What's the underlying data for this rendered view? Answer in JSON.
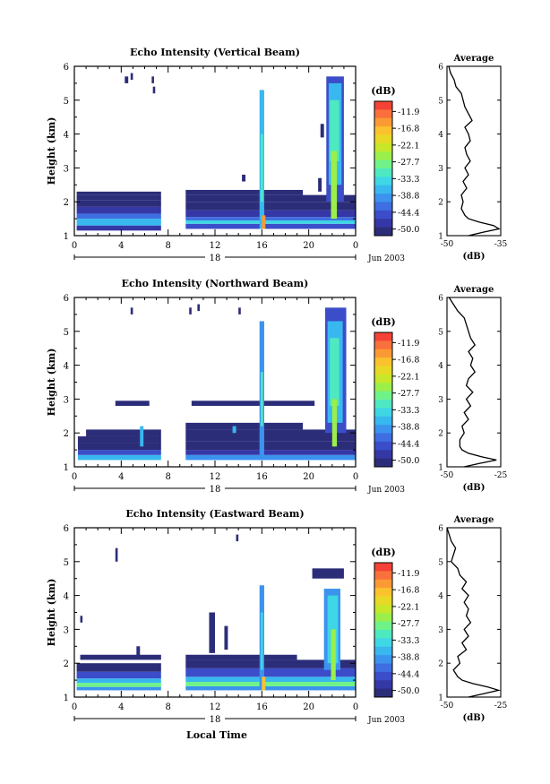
{
  "figure": {
    "xlabel": "Local Time",
    "date_label": "Jun 2003",
    "day_label": "18",
    "ylabel": "Height (km)",
    "cb_unit": "(dB)",
    "avg_title": "Average",
    "avg_xlabel": "(dB)"
  },
  "colorbar": {
    "ticks": [
      "-11.9",
      "-16.8",
      "-22.1",
      "-27.7",
      "-33.3",
      "-38.8",
      "-44.4",
      "-50.0"
    ],
    "colors": [
      "#f44336",
      "#f9703c",
      "#fb9a35",
      "#fcc22e",
      "#e7d925",
      "#c8e62a",
      "#9bef4a",
      "#6ff389",
      "#4fe9c1",
      "#3fd6e5",
      "#38b8ef",
      "#3b93ee",
      "#3e6ee1",
      "#3b4dc9",
      "#3537a6",
      "#2c2d79"
    ]
  },
  "chart_data": [
    {
      "type": "heatmap",
      "title": "Echo Intensity (Vertical Beam)",
      "xlabel": "Local Time",
      "ylabel": "Height (km)",
      "xlim": [
        0,
        24
      ],
      "ylim": [
        1,
        6
      ],
      "xticks": [
        "0",
        "4",
        "8",
        "12",
        "16",
        "20",
        "0"
      ],
      "yticks": [
        "1",
        "2",
        "3",
        "4",
        "5",
        "6"
      ],
      "zlim": [
        -50.0,
        -11.9
      ],
      "gaps": [
        [
          7.5,
          9.5
        ]
      ],
      "blocks": [
        [
          0.2,
          7.4,
          1.15,
          1.3,
          -47
        ],
        [
          0.2,
          7.4,
          1.3,
          1.5,
          -36
        ],
        [
          0.2,
          7.4,
          1.5,
          1.65,
          -42
        ],
        [
          0.2,
          7.4,
          1.65,
          1.85,
          -47
        ],
        [
          0.2,
          7.4,
          1.85,
          2.05,
          -49
        ],
        [
          0.2,
          7.4,
          2.05,
          2.2,
          -51
        ],
        [
          0.2,
          7.4,
          2.2,
          2.3,
          -48
        ],
        [
          9.5,
          24,
          1.2,
          1.35,
          -44
        ],
        [
          9.5,
          24,
          1.35,
          1.45,
          -34
        ],
        [
          9.5,
          24,
          1.45,
          1.55,
          -41
        ],
        [
          9.5,
          24,
          1.55,
          1.75,
          -46
        ],
        [
          9.5,
          24,
          1.75,
          2.0,
          -48
        ],
        [
          9.5,
          24,
          2.0,
          2.2,
          -50
        ],
        [
          9.5,
          19.5,
          2.2,
          2.35,
          -48
        ],
        [
          15.8,
          16.2,
          1.2,
          5.3,
          -38
        ],
        [
          15.9,
          16.1,
          2.0,
          4.0,
          -33
        ],
        [
          16.0,
          16.3,
          1.2,
          1.6,
          -18
        ],
        [
          21.5,
          23.0,
          2.0,
          5.7,
          -43
        ],
        [
          21.7,
          22.8,
          2.5,
          5.5,
          -37
        ],
        [
          21.8,
          22.6,
          3.2,
          5.0,
          -33
        ],
        [
          21.9,
          22.4,
          1.5,
          3.5,
          -28
        ],
        [
          4.3,
          4.6,
          5.5,
          5.7,
          -50
        ],
        [
          4.8,
          5.0,
          5.6,
          5.8,
          -50
        ],
        [
          6.6,
          6.8,
          5.5,
          5.7,
          -50
        ],
        [
          6.7,
          6.9,
          5.2,
          5.4,
          -50
        ],
        [
          20.8,
          21.1,
          2.3,
          2.7,
          -49
        ],
        [
          21.0,
          21.3,
          3.9,
          4.3,
          -49
        ],
        [
          14.3,
          14.6,
          2.6,
          2.8,
          -49
        ]
      ],
      "avg_profile": {
        "xlim": [
          -50,
          -35
        ],
        "xticks": [
          "-50",
          "-35"
        ],
        "h": [
          1.0,
          1.1,
          1.2,
          1.3,
          1.4,
          1.5,
          1.6,
          1.8,
          2.0,
          2.2,
          2.4,
          2.6,
          2.8,
          3.0,
          3.2,
          3.4,
          3.6,
          3.8,
          4.0,
          4.2,
          4.4,
          4.6,
          4.8,
          5.0,
          5.2,
          5.4,
          5.6,
          5.8,
          6.0
        ],
        "db": [
          -44,
          -40,
          -35.5,
          -37,
          -41,
          -44,
          -45,
          -46,
          -45.5,
          -46,
          -44.5,
          -45.5,
          -44,
          -45,
          -43.5,
          -44.5,
          -45,
          -43.5,
          -44,
          -45,
          -43,
          -44,
          -45,
          -45.5,
          -46,
          -47.5,
          -48,
          -49,
          -49.5
        ]
      }
    },
    {
      "type": "heatmap",
      "title": "Echo Intensity (Northward Beam)",
      "xlabel": "Local Time",
      "ylabel": "Height (km)",
      "xlim": [
        0,
        24
      ],
      "ylim": [
        1,
        6
      ],
      "xticks": [
        "0",
        "4",
        "8",
        "12",
        "16",
        "20",
        "0"
      ],
      "yticks": [
        "1",
        "2",
        "3",
        "4",
        "5",
        "6"
      ],
      "zlim": [
        -50.0,
        -11.9
      ],
      "gaps": [
        [
          7.5,
          9.5
        ]
      ],
      "blocks": [
        [
          0.3,
          7.4,
          1.2,
          1.35,
          -37
        ],
        [
          0.3,
          7.4,
          1.35,
          1.5,
          -44
        ],
        [
          0.3,
          7.4,
          1.5,
          1.7,
          -48
        ],
        [
          0.3,
          7.4,
          1.7,
          1.9,
          -50
        ],
        [
          1.0,
          7.4,
          1.9,
          2.1,
          -50
        ],
        [
          5.6,
          5.9,
          1.6,
          2.2,
          -36
        ],
        [
          9.5,
          24,
          1.2,
          1.35,
          -40
        ],
        [
          9.5,
          24,
          1.35,
          1.5,
          -46
        ],
        [
          9.5,
          24,
          1.5,
          1.75,
          -48
        ],
        [
          9.5,
          24,
          1.75,
          2.1,
          -50
        ],
        [
          9.5,
          19.5,
          2.1,
          2.3,
          -50
        ],
        [
          10.0,
          20.5,
          2.8,
          2.95,
          -50
        ],
        [
          3.5,
          6.4,
          2.8,
          2.95,
          -50
        ],
        [
          15.8,
          16.2,
          1.2,
          5.3,
          -39
        ],
        [
          15.9,
          16.1,
          2.2,
          3.8,
          -33
        ],
        [
          21.4,
          23.2,
          2.0,
          5.7,
          -43
        ],
        [
          21.6,
          22.9,
          2.3,
          5.3,
          -37
        ],
        [
          21.8,
          22.6,
          2.8,
          4.8,
          -32
        ],
        [
          22.0,
          22.4,
          1.6,
          3.0,
          -28
        ],
        [
          4.8,
          5.0,
          5.5,
          5.7,
          -50
        ],
        [
          9.8,
          10.0,
          5.5,
          5.7,
          -50
        ],
        [
          10.5,
          10.7,
          5.6,
          5.8,
          -50
        ],
        [
          14.0,
          14.2,
          5.5,
          5.7,
          -50
        ],
        [
          13.5,
          13.8,
          2.0,
          2.2,
          -36
        ]
      ],
      "avg_profile": {
        "xlim": [
          -50,
          -25
        ],
        "xticks": [
          "-50",
          "-25"
        ],
        "h": [
          1.0,
          1.1,
          1.2,
          1.3,
          1.4,
          1.5,
          1.6,
          1.8,
          2.0,
          2.2,
          2.4,
          2.6,
          2.8,
          3.0,
          3.2,
          3.4,
          3.6,
          3.8,
          4.0,
          4.2,
          4.4,
          4.6,
          4.8,
          5.0,
          5.2,
          5.4,
          5.6,
          5.8,
          6.0
        ],
        "db": [
          -42,
          -35,
          -27,
          -34,
          -40,
          -43,
          -44,
          -44,
          -42,
          -43,
          -40,
          -42,
          -39,
          -41,
          -38,
          -41,
          -40,
          -37,
          -39,
          -38,
          -40,
          -37,
          -39,
          -40,
          -41,
          -42,
          -45,
          -47,
          -49
        ]
      }
    },
    {
      "type": "heatmap",
      "title": "Echo Intensity (Eastward Beam)",
      "xlabel": "Local Time",
      "ylabel": "Height (km)",
      "xlim": [
        0,
        24
      ],
      "ylim": [
        1,
        6
      ],
      "xticks": [
        "0",
        "4",
        "8",
        "12",
        "16",
        "20",
        "0"
      ],
      "yticks": [
        "1",
        "2",
        "3",
        "4",
        "5",
        "6"
      ],
      "zlim": [
        -50.0,
        -11.9
      ],
      "gaps": [
        [
          7.5,
          9.5
        ]
      ],
      "blocks": [
        [
          0.2,
          7.4,
          1.2,
          1.3,
          -40
        ],
        [
          0.2,
          7.4,
          1.3,
          1.42,
          -29
        ],
        [
          0.2,
          7.4,
          1.42,
          1.55,
          -38
        ],
        [
          0.2,
          7.4,
          1.55,
          1.75,
          -45
        ],
        [
          0.2,
          7.4,
          1.75,
          2.0,
          -49
        ],
        [
          0.5,
          7.4,
          2.1,
          2.25,
          -50
        ],
        [
          9.5,
          24,
          1.2,
          1.32,
          -40
        ],
        [
          9.5,
          24,
          1.32,
          1.45,
          -30
        ],
        [
          9.5,
          24,
          1.45,
          1.6,
          -38
        ],
        [
          9.5,
          24,
          1.6,
          1.85,
          -45
        ],
        [
          9.5,
          24,
          1.85,
          2.1,
          -48
        ],
        [
          9.5,
          19.0,
          2.1,
          2.25,
          -49
        ],
        [
          15.8,
          16.2,
          1.2,
          4.3,
          -40
        ],
        [
          15.9,
          16.1,
          1.8,
          3.5,
          -35
        ],
        [
          16.0,
          16.3,
          1.2,
          1.6,
          -20
        ],
        [
          21.3,
          22.7,
          1.8,
          4.2,
          -40
        ],
        [
          21.6,
          22.5,
          2.0,
          4.0,
          -34
        ],
        [
          21.9,
          22.3,
          1.5,
          3.0,
          -28
        ],
        [
          20.3,
          23.0,
          4.5,
          4.8,
          -49
        ],
        [
          3.5,
          3.7,
          5.0,
          5.4,
          -50
        ],
        [
          13.8,
          14.0,
          5.6,
          5.8,
          -50
        ],
        [
          11.5,
          12.0,
          2.3,
          3.5,
          -48
        ],
        [
          12.8,
          13.1,
          2.4,
          3.1,
          -49
        ],
        [
          5.3,
          5.6,
          2.2,
          2.5,
          -50
        ],
        [
          0.5,
          0.7,
          3.2,
          3.4,
          -50
        ]
      ],
      "avg_profile": {
        "xlim": [
          -50,
          -25
        ],
        "xticks": [
          "-50",
          "-25"
        ],
        "h": [
          1.0,
          1.1,
          1.2,
          1.3,
          1.4,
          1.5,
          1.6,
          1.8,
          2.0,
          2.2,
          2.4,
          2.6,
          2.8,
          3.0,
          3.2,
          3.4,
          3.6,
          3.8,
          4.0,
          4.2,
          4.4,
          4.6,
          4.8,
          5.0,
          5.2,
          5.4,
          5.6,
          5.8,
          6.0
        ],
        "db": [
          -40,
          -33,
          -26,
          -31,
          -38,
          -43,
          -45,
          -47,
          -44,
          -45,
          -41,
          -43,
          -40,
          -42,
          -39,
          -41,
          -40,
          -42,
          -40,
          -43,
          -41,
          -44,
          -45,
          -48,
          -47,
          -46,
          -48,
          -49,
          -50
        ]
      }
    }
  ]
}
